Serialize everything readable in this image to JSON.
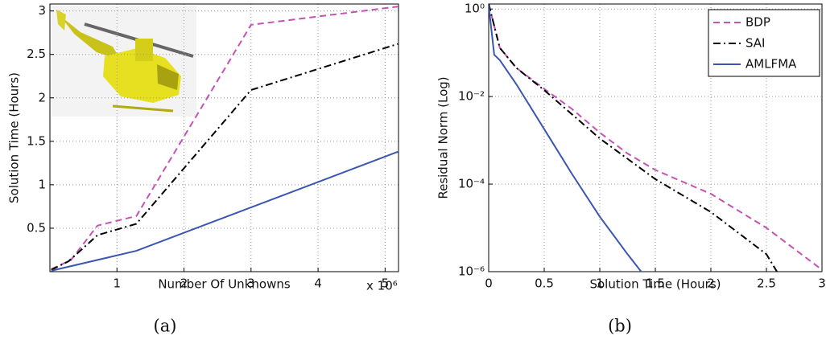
{
  "chart_data": [
    {
      "type": "line",
      "caption": "(a)",
      "x_label": "Number Of Unknowns",
      "y_label": "Solution Time (Hours)",
      "x_multiplier": "x 10⁶",
      "xlim": [
        0,
        5.2
      ],
      "xticks": [
        1,
        2,
        3,
        4,
        5
      ],
      "ylim": [
        0,
        3.08
      ],
      "yticks": [
        0.5,
        1,
        1.5,
        2,
        2.5,
        3
      ],
      "grid": true,
      "log_y": false,
      "series": [
        {
          "name": "BDP",
          "color": "#c452b4",
          "dash": "dashed",
          "x": [
            0.02,
            0.31,
            0.71,
            1.29,
            3.0,
            5.19
          ],
          "values": [
            0.03,
            0.13,
            0.53,
            0.64,
            2.84,
            3.05
          ]
        },
        {
          "name": "SAI",
          "color": "#000000",
          "dash": "dashdot",
          "x": [
            0.02,
            0.28,
            0.71,
            1.29,
            3.0,
            5.19
          ],
          "values": [
            0.02,
            0.12,
            0.42,
            0.55,
            2.09,
            2.62
          ]
        },
        {
          "name": "AMLFMA",
          "color": "#3a56b0",
          "dash": "solid",
          "x": [
            0.02,
            1.29,
            5.19
          ],
          "values": [
            0.01,
            0.24,
            1.38
          ]
        }
      ]
    },
    {
      "type": "line",
      "caption": "(b)",
      "x_label": "Solution Time (Hours)",
      "y_label": "Residual Norm (Log)",
      "xlim": [
        0,
        3
      ],
      "xticks": [
        0,
        0.5,
        1,
        1.5,
        2,
        2.5,
        3
      ],
      "ylim": [
        1e-06,
        1.3
      ],
      "yticks": [
        {
          "value": 1,
          "label": "10⁰"
        },
        {
          "value": 0.01,
          "label": "10⁻²"
        },
        {
          "value": 0.0001,
          "label": "10⁻⁴"
        },
        {
          "value": 1e-06,
          "label": "10⁻⁶"
        }
      ],
      "grid": true,
      "log_y": true,
      "legend": "upper right",
      "series": [
        {
          "name": "BDP",
          "color": "#c452b4",
          "dash": "dashed",
          "x": [
            0,
            0.1,
            0.25,
            0.5,
            0.75,
            1,
            1.25,
            1.5,
            2,
            2.5,
            3
          ],
          "values": [
            1.3,
            0.13,
            0.045,
            0.015,
            0.0052,
            0.0015,
            0.0005,
            0.00021,
            6e-05,
            1e-05,
            1.1e-06
          ]
        },
        {
          "name": "SAI",
          "color": "#000000",
          "dash": "dashdot",
          "x": [
            0,
            0.1,
            0.25,
            0.5,
            1,
            1.5,
            2,
            2.5,
            2.6
          ],
          "values": [
            1.3,
            0.13,
            0.045,
            0.014,
            0.0011,
            0.00013,
            2.3e-05,
            2.5e-06,
            9.5e-07
          ]
        },
        {
          "name": "AMLFMA",
          "color": "#3a56b0",
          "dash": "solid",
          "x": [
            0,
            0.05,
            0.1,
            0.25,
            0.5,
            0.75,
            1,
            1.25,
            1.38
          ],
          "values": [
            1.2,
            0.09,
            0.068,
            0.019,
            0.0018,
            0.00017,
            1.8e-05,
            2.5e-06,
            9.5e-07
          ]
        }
      ]
    }
  ]
}
